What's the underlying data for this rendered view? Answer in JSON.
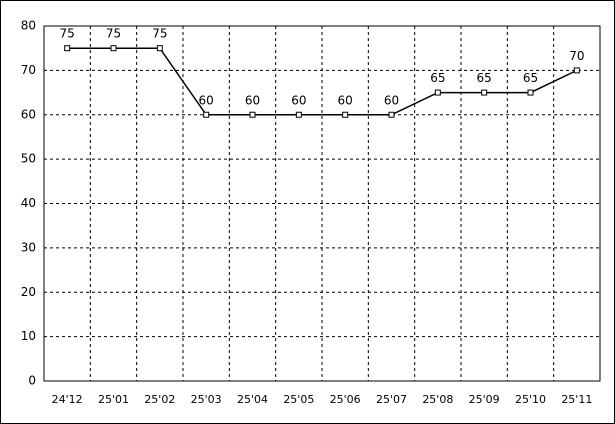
{
  "chart_data": {
    "type": "line",
    "categories": [
      "24'12",
      "25'01",
      "25'02",
      "25'03",
      "25'04",
      "25'05",
      "25'06",
      "25'07",
      "25'08",
      "25'09",
      "25'10",
      "25'11"
    ],
    "values": [
      75,
      75,
      75,
      60,
      60,
      60,
      60,
      60,
      65,
      65,
      65,
      70
    ],
    "color": "#000000",
    "ylim": [
      0,
      80
    ],
    "yticks": [
      0,
      10,
      20,
      30,
      40,
      50,
      60,
      70,
      80
    ],
    "grid": true
  }
}
